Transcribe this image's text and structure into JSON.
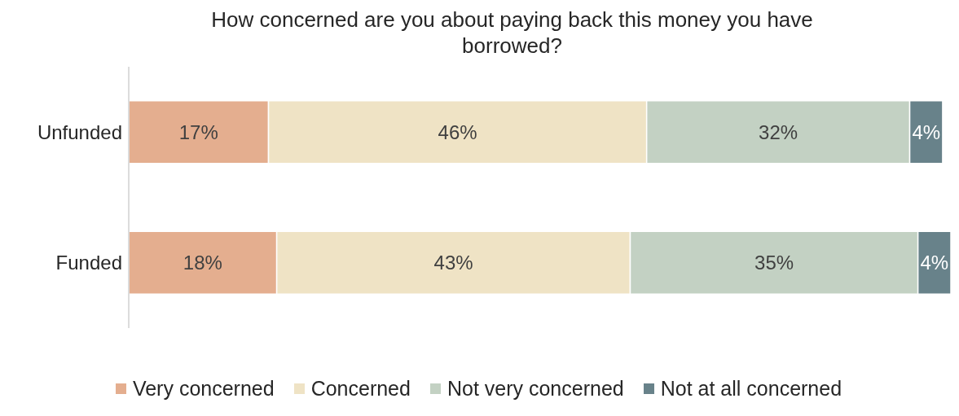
{
  "chart_data": {
    "type": "bar",
    "title": "How concerned are you about paying back this money you have borrowed?",
    "orientation": "horizontal",
    "stacked": true,
    "categories": [
      "Unfunded",
      "Funded"
    ],
    "series": [
      {
        "name": "Very concerned",
        "color": "#e4ae8f",
        "values": [
          17,
          18
        ],
        "value_labels": [
          "17%",
          "18%"
        ]
      },
      {
        "name": "Concerned",
        "color": "#efe3c5",
        "values": [
          46,
          43
        ],
        "value_labels": [
          "46%",
          "43%"
        ]
      },
      {
        "name": "Not very concerned",
        "color": "#c3d1c3",
        "values": [
          32,
          35
        ],
        "value_labels": [
          "32%",
          "35%"
        ]
      },
      {
        "name": "Not at all concerned",
        "color": "#68828a",
        "values": [
          4,
          4
        ],
        "value_labels": [
          "4%",
          "4%"
        ]
      }
    ],
    "legend": "bottom",
    "tick_labels": "y"
  }
}
